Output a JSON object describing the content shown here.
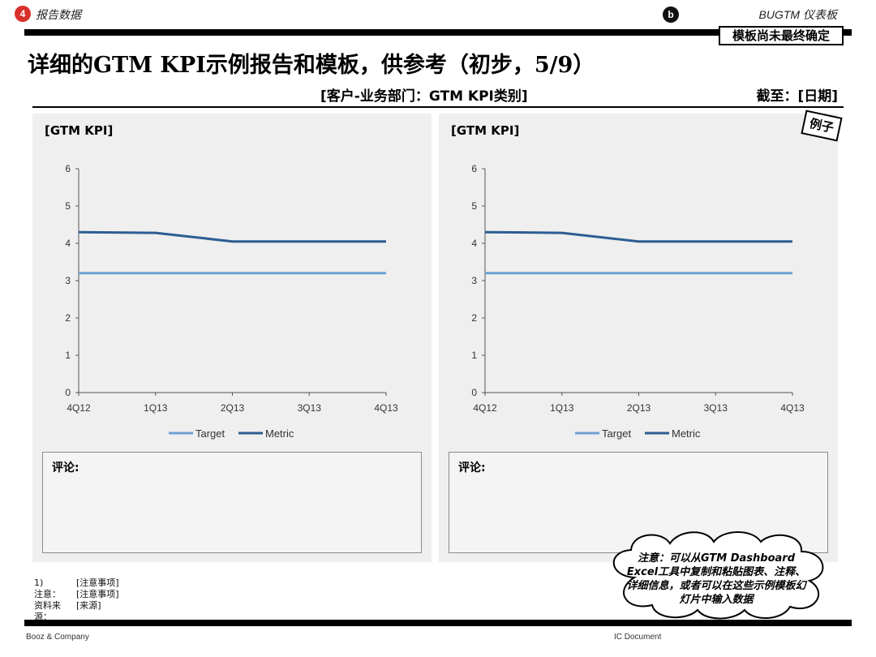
{
  "header": {
    "section_number": "4",
    "section_label": "报告数据",
    "step_letter": "b",
    "dashboard_label": "BUGTM 仪表板",
    "stamp": "模板尚未最终确定"
  },
  "title": "详细的GTM KPI示例报告和模板，供参考（初步，5/9）",
  "subheader": "[客户-业务部门：GTM KPI类别]",
  "as_of": "截至：[日期]",
  "example_tag": "例子",
  "comment_label": "评论:",
  "chart_data": [
    {
      "type": "line",
      "title": "[GTM KPI]",
      "categories": [
        "4Q12",
        "1Q13",
        "2Q13",
        "3Q13",
        "4Q13"
      ],
      "ylim": [
        0,
        6
      ],
      "yticks": [
        0,
        1,
        2,
        3,
        4,
        5,
        6
      ],
      "legend_position": "bottom",
      "series": [
        {
          "name": "Target",
          "color": "#6ea1d4",
          "values": [
            3.2,
            3.2,
            3.2,
            3.2,
            3.2
          ]
        },
        {
          "name": "Metric",
          "color": "#2c5d92",
          "values": [
            4.3,
            4.28,
            4.05,
            4.05,
            4.05
          ]
        }
      ]
    },
    {
      "type": "line",
      "title": "[GTM KPI]",
      "categories": [
        "4Q12",
        "1Q13",
        "2Q13",
        "3Q13",
        "4Q13"
      ],
      "ylim": [
        0,
        6
      ],
      "yticks": [
        0,
        1,
        2,
        3,
        4,
        5,
        6
      ],
      "legend_position": "bottom",
      "series": [
        {
          "name": "Target",
          "color": "#6ea1d4",
          "values": [
            3.2,
            3.2,
            3.2,
            3.2,
            3.2
          ]
        },
        {
          "name": "Metric",
          "color": "#2c5d92",
          "values": [
            4.3,
            4.28,
            4.05,
            4.05,
            4.05
          ]
        }
      ]
    }
  ],
  "notes": [
    {
      "key": "1)",
      "value": "[注意事项]"
    },
    {
      "key": "注意：",
      "value": "[注意事项]"
    },
    {
      "key": "资料来源：",
      "value": "[来源]"
    }
  ],
  "callout": "注意：可以从GTM Dashboard Excel工具中复制和粘贴图表、注释、详细信息，或者可以在这些示例模板幻灯片中输入数据",
  "footer": {
    "left": "Booz & Company",
    "center": "IC Document"
  }
}
